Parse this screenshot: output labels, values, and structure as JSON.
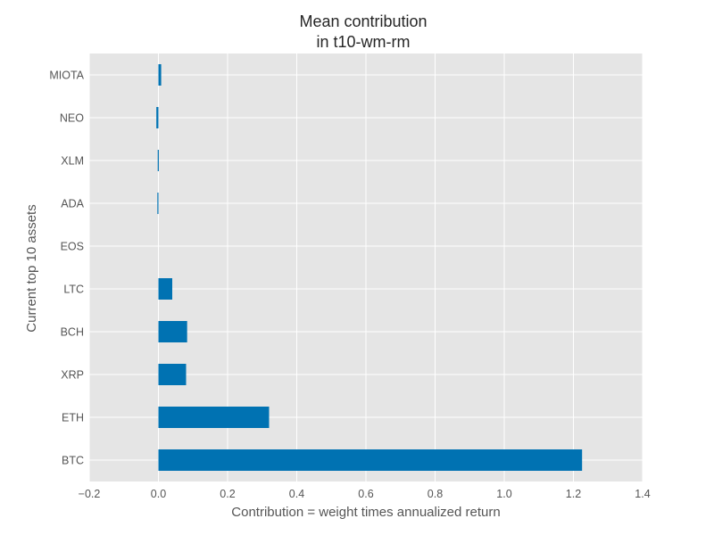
{
  "chart_data": {
    "type": "bar",
    "orientation": "horizontal",
    "title": "Mean contribution\n in t10-wm-rm",
    "xlabel": "Contribution = weight times annualized return",
    "ylabel": "Current top 10 assets",
    "categories": [
      "BTC",
      "ETH",
      "XRP",
      "BCH",
      "LTC",
      "EOS",
      "ADA",
      "XLM",
      "NEO",
      "MIOTA"
    ],
    "values": [
      1.225,
      0.32,
      0.08,
      0.083,
      0.04,
      0.0,
      -0.003,
      -0.002,
      -0.006,
      0.008
    ],
    "xlim": [
      -0.2,
      1.4
    ],
    "xticks": [
      "−0.2",
      "0.0",
      "0.2",
      "0.4",
      "0.6",
      "0.8",
      "1.0",
      "1.2",
      "1.4"
    ],
    "grid": true,
    "bar_color": "#0072b2",
    "background_color": "#e5e5e5",
    "grid_color": "#ffffff"
  }
}
